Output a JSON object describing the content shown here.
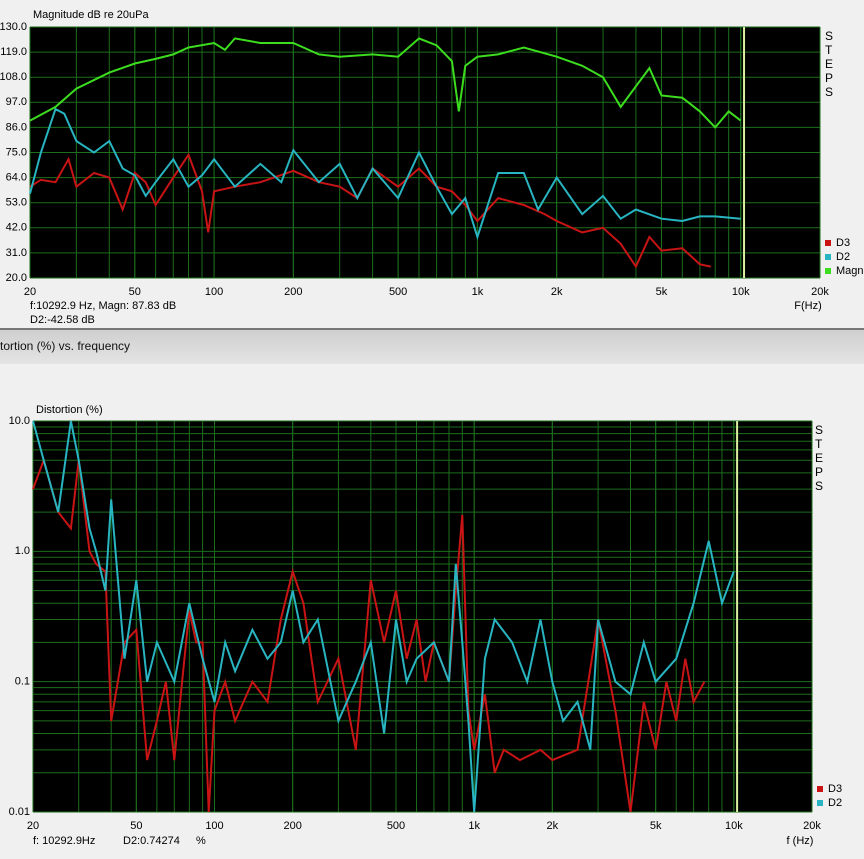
{
  "window_title": "tortion (%) vs. frequency",
  "chart_data": [
    {
      "type": "line",
      "title": "Magnitude dB re 20uPa",
      "x_label": "F(Hz)",
      "side_label": "STEPS",
      "readout": [
        "f:10292.9 Hz, Magn: 87.83 dB",
        "D2:-42.58 dB"
      ],
      "cursor": 10292.9,
      "xscale": "log",
      "xlim": [
        20,
        20000
      ],
      "xticks": [
        20,
        50,
        100,
        200,
        500,
        {
          "value": 1000,
          "label": "1k"
        },
        {
          "value": 2000,
          "label": "2k"
        },
        {
          "value": 5000,
          "label": "5k"
        },
        {
          "value": 10000,
          "label": "10k"
        },
        {
          "value": 20000,
          "label": "20k"
        }
      ],
      "ylim": [
        20,
        130
      ],
      "yticks": [
        {
          "value": 20,
          "label": "20.0"
        },
        {
          "value": 31,
          "label": "31.0"
        },
        {
          "value": 42,
          "label": "42.0"
        },
        {
          "value": 53,
          "label": "53.0"
        },
        {
          "value": 64,
          "label": "64.0"
        },
        {
          "value": 75,
          "label": "75.0"
        },
        {
          "value": 86,
          "label": "86.0"
        },
        {
          "value": 97,
          "label": "97.0"
        },
        {
          "value": 108,
          "label": "108.0"
        },
        {
          "value": 119,
          "label": "119.0"
        },
        {
          "value": 130,
          "label": "130.0"
        }
      ],
      "grid": true,
      "legend": "lower right",
      "series": [
        {
          "name": "D3",
          "color": "#c81414",
          "x": [
            20,
            22,
            25,
            28,
            30,
            35,
            40,
            45,
            50,
            55,
            60,
            70,
            80,
            90,
            95,
            100,
            120,
            150,
            200,
            250,
            300,
            350,
            400,
            500,
            600,
            700,
            800,
            900,
            1000,
            1200,
            1500,
            1800,
            2000,
            2500,
            3000,
            3500,
            4000,
            4500,
            5000,
            6000,
            7000,
            7700
          ],
          "values": [
            60,
            63,
            62,
            72,
            60,
            66,
            64,
            50,
            66,
            62,
            52,
            64,
            74,
            58,
            40,
            58,
            60,
            62,
            67,
            62,
            60,
            55,
            68,
            60,
            68,
            60,
            58,
            52,
            45,
            55,
            52,
            48,
            45,
            40,
            42,
            35,
            25,
            38,
            32,
            33,
            26,
            25
          ]
        },
        {
          "name": "D2",
          "color": "#28b4c0",
          "x": [
            20,
            22,
            25,
            27,
            30,
            35,
            40,
            45,
            50,
            55,
            60,
            70,
            80,
            90,
            100,
            120,
            150,
            180,
            200,
            250,
            300,
            350,
            400,
            500,
            600,
            700,
            800,
            900,
            1000,
            1200,
            1500,
            1700,
            2000,
            2500,
            3000,
            3500,
            4000,
            5000,
            6000,
            7000,
            8000,
            10000
          ],
          "values": [
            57,
            75,
            94,
            92,
            80,
            75,
            80,
            68,
            65,
            56,
            62,
            72,
            60,
            65,
            72,
            60,
            70,
            62,
            76,
            62,
            70,
            55,
            68,
            55,
            75,
            60,
            48,
            55,
            38,
            66,
            66,
            50,
            64,
            48,
            56,
            46,
            50,
            46,
            45,
            47,
            47,
            46
          ]
        },
        {
          "name": "Magn",
          "color": "#3cdc1e",
          "x": [
            20,
            25,
            30,
            40,
            50,
            60,
            70,
            80,
            100,
            110,
            120,
            150,
            200,
            250,
            300,
            400,
            500,
            600,
            700,
            800,
            850,
            900,
            1000,
            1200,
            1500,
            2000,
            2500,
            3000,
            3500,
            4000,
            4500,
            5000,
            6000,
            7000,
            8000,
            9000,
            10000
          ],
          "values": [
            89,
            95,
            103,
            110,
            114,
            116,
            118,
            121,
            123,
            120,
            125,
            123,
            123,
            118,
            117,
            118,
            117,
            125,
            122,
            115,
            93,
            113,
            117,
            118,
            121,
            117,
            113,
            108,
            95,
            104,
            112,
            100,
            99,
            93,
            86,
            93,
            89
          ]
        }
      ]
    },
    {
      "type": "line",
      "title": "Distortion (%)",
      "x_label": "f (Hz)",
      "side_label": "STEPS",
      "readout": [
        "f: 10292.9Hz",
        "D2:0.74274",
        "%"
      ],
      "cursor": 10292.9,
      "xscale": "log",
      "xlim": [
        20,
        20000
      ],
      "xticks": [
        20,
        50,
        100,
        200,
        500,
        {
          "value": 1000,
          "label": "1k"
        },
        {
          "value": 2000,
          "label": "2k"
        },
        {
          "value": 5000,
          "label": "5k"
        },
        {
          "value": 10000,
          "label": "10k"
        },
        {
          "value": 20000,
          "label": "20k"
        }
      ],
      "yscale": "log",
      "ylim": [
        0.01,
        10
      ],
      "yticks": [
        0.01,
        0.1,
        {
          "value": 1,
          "label": "1.0"
        },
        {
          "value": 10,
          "label": "10.0"
        }
      ],
      "grid": true,
      "legend": "lower right",
      "series": [
        {
          "name": "D3",
          "color": "#c81414",
          "x": [
            20,
            22,
            25,
            28,
            30,
            33,
            35,
            38,
            40,
            45,
            50,
            55,
            60,
            65,
            70,
            75,
            80,
            85,
            90,
            95,
            100,
            110,
            120,
            140,
            160,
            180,
            200,
            220,
            250,
            300,
            350,
            400,
            450,
            500,
            550,
            600,
            650,
            700,
            800,
            850,
            900,
            950,
            1000,
            1100,
            1200,
            1300,
            1500,
            1800,
            2000,
            2500,
            3000,
            3500,
            4000,
            4500,
            5000,
            5500,
            6000,
            6500,
            7000,
            7700
          ],
          "values": [
            3,
            5,
            2,
            1.5,
            5,
            1,
            0.8,
            0.7,
            0.05,
            0.2,
            0.25,
            0.025,
            0.05,
            0.1,
            0.025,
            0.1,
            0.35,
            0.2,
            0.2,
            0.01,
            0.06,
            0.1,
            0.05,
            0.1,
            0.07,
            0.3,
            0.7,
            0.4,
            0.07,
            0.15,
            0.03,
            0.6,
            0.2,
            0.5,
            0.15,
            0.3,
            0.1,
            0.2,
            0.1,
            0.5,
            1.9,
            0.06,
            0.03,
            0.08,
            0.02,
            0.03,
            0.025,
            0.03,
            0.025,
            0.03,
            0.3,
            0.06,
            0.01,
            0.07,
            0.03,
            0.1,
            0.05,
            0.15,
            0.07,
            0.1
          ]
        },
        {
          "name": "D2",
          "color": "#28b4c0",
          "x": [
            20,
            22,
            25,
            28,
            30,
            33,
            35,
            38,
            40,
            45,
            50,
            55,
            60,
            70,
            80,
            90,
            100,
            110,
            120,
            140,
            160,
            180,
            200,
            220,
            250,
            300,
            350,
            400,
            450,
            500,
            550,
            600,
            700,
            800,
            850,
            900,
            950,
            1000,
            1100,
            1200,
            1400,
            1600,
            1800,
            2000,
            2200,
            2500,
            2800,
            3000,
            3500,
            4000,
            4500,
            5000,
            6000,
            7000,
            8000,
            9000,
            10000
          ],
          "values": [
            10,
            5,
            2,
            10,
            5,
            1.5,
            1,
            0.5,
            2.5,
            0.15,
            0.6,
            0.1,
            0.2,
            0.1,
            0.4,
            0.15,
            0.07,
            0.2,
            0.12,
            0.25,
            0.15,
            0.2,
            0.5,
            0.2,
            0.3,
            0.05,
            0.1,
            0.2,
            0.04,
            0.3,
            0.1,
            0.15,
            0.2,
            0.1,
            0.8,
            0.2,
            0.05,
            0.01,
            0.15,
            0.3,
            0.2,
            0.1,
            0.3,
            0.1,
            0.05,
            0.07,
            0.03,
            0.3,
            0.1,
            0.08,
            0.2,
            0.1,
            0.15,
            0.4,
            1.2,
            0.4,
            0.7
          ]
        }
      ]
    }
  ]
}
